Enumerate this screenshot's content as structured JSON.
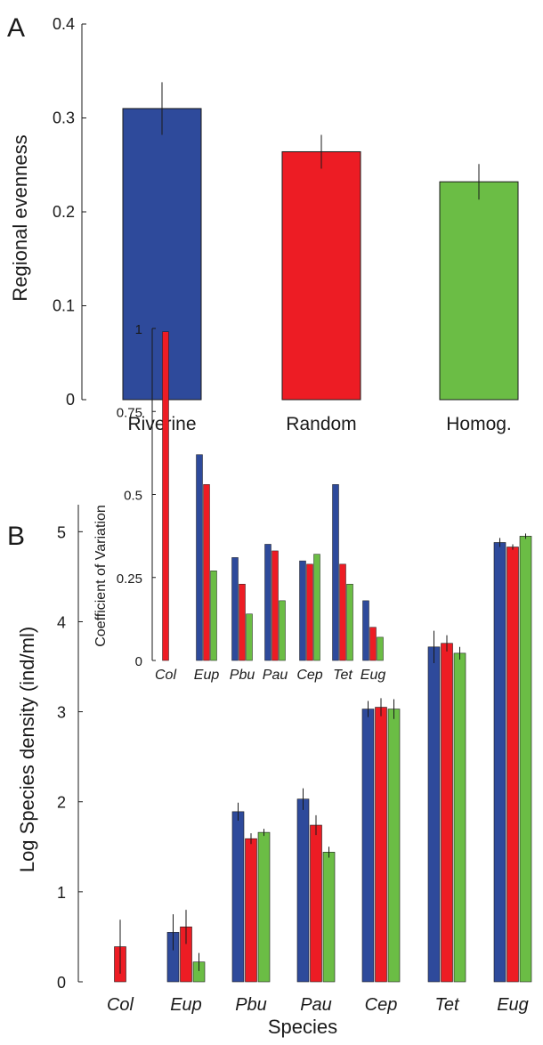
{
  "colors": {
    "riverine": "#2e4a9b",
    "random": "#ed1c24",
    "homog": "#6bbd45",
    "axis": "#1a1a1a"
  },
  "chart_data": [
    {
      "type": "bar",
      "panel_label": "A",
      "title": "",
      "xlabel": "",
      "ylabel": "Regional evenness",
      "ylim": [
        0,
        0.4
      ],
      "yticks": [
        0,
        0.1,
        0.2,
        0.3,
        0.4
      ],
      "ytick_labels": [
        "0",
        "0.1",
        "0.2",
        "0.3",
        "0.4"
      ],
      "categories": [
        "Riverine",
        "Random",
        "Homog."
      ],
      "values": [
        0.31,
        0.264,
        0.232
      ],
      "errors": [
        0.028,
        0.018,
        0.019
      ],
      "grid": false,
      "legend": "none"
    },
    {
      "type": "bar",
      "panel_label": "B",
      "title": "",
      "xlabel": "Species",
      "ylabel": "Log Species density (ind/ml)",
      "ylim": [
        0,
        5.3
      ],
      "yticks": [
        0,
        1,
        2,
        3,
        4,
        5
      ],
      "ytick_labels": [
        "0",
        "1",
        "2",
        "3",
        "4",
        "5"
      ],
      "categories": [
        "Col",
        "Eup",
        "Pbu",
        "Pau",
        "Cep",
        "Tet",
        "Eug"
      ],
      "series": [
        {
          "values": [
            0,
            0.55,
            1.89,
            2.03,
            3.03,
            3.72,
            4.88
          ],
          "errors": [
            0,
            0.2,
            0.1,
            0.12,
            0.09,
            0.18,
            0.05
          ]
        },
        {
          "values": [
            0.39,
            0.61,
            1.59,
            1.74,
            3.05,
            3.76,
            4.83
          ],
          "errors": [
            0.3,
            0.19,
            0.06,
            0.11,
            0.1,
            0.09,
            0.03
          ]
        },
        {
          "values": [
            0,
            0.22,
            1.66,
            1.44,
            3.03,
            3.65,
            4.95
          ],
          "errors": [
            0,
            0.1,
            0.04,
            0.06,
            0.11,
            0.07,
            0.03
          ]
        }
      ],
      "grid": false,
      "legend": "none"
    },
    {
      "type": "bar",
      "panel_label": "",
      "title": "",
      "xlabel": "",
      "ylabel": "Coefficient of Variation",
      "ylim": [
        0,
        1
      ],
      "yticks": [
        0,
        0.25,
        0.5,
        0.75,
        1
      ],
      "ytick_labels": [
        "0",
        "0.25",
        "0.5",
        "0.75",
        "1"
      ],
      "categories": [
        "Col",
        "Eup",
        "Pbu",
        "Pau",
        "Cep",
        "Tet",
        "Eug"
      ],
      "series": [
        {
          "values": [
            0,
            0.62,
            0.31,
            0.35,
            0.3,
            0.53,
            0.18
          ]
        },
        {
          "values": [
            0.99,
            0.53,
            0.23,
            0.33,
            0.29,
            0.29,
            0.1
          ]
        },
        {
          "values": [
            0,
            0.27,
            0.14,
            0.18,
            0.32,
            0.23,
            0.07
          ]
        }
      ],
      "grid": false,
      "legend": "none"
    }
  ]
}
